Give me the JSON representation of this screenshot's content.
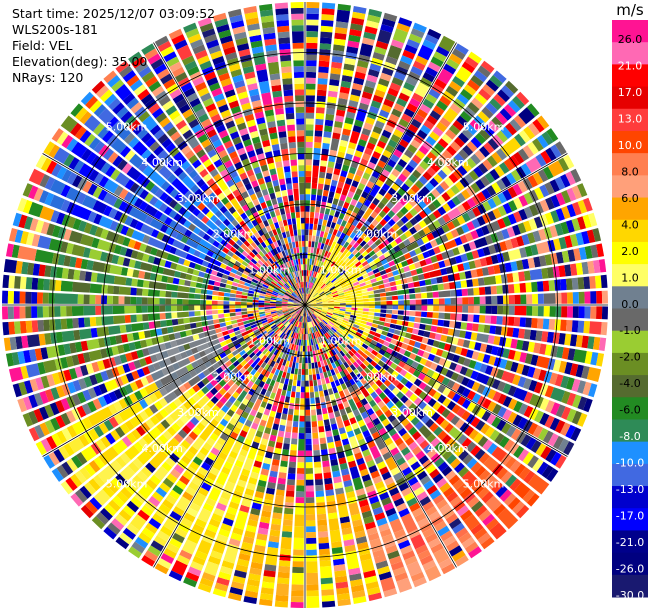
{
  "info": {
    "start_time": "Start time: 2025/12/07 03:09:52",
    "instrument": "WLS200s-181",
    "field": "Field: VEL",
    "elevation": "Elevation(deg): 35.00",
    "nrays": "NRays: 120"
  },
  "chart_data": {
    "type": "heatmap",
    "projection": "polar-ppi",
    "field": "VEL",
    "unit": "m/s",
    "nrays": 120,
    "elevation_deg": 35.0,
    "max_range_km": 6.0,
    "range_rings_km": [
      1.0,
      2.0,
      3.0,
      4.0,
      5.0
    ],
    "ring_labels": [
      "1.00km",
      "2.00km",
      "3.00km",
      "4.00km",
      "5.00km"
    ],
    "colorbar": {
      "ticks": [
        "26.0",
        "21.0",
        "17.0",
        "13.0",
        "10.0",
        "8.0",
        "6.0",
        "4.0",
        "2.0",
        "1.0",
        "0.0",
        "-1.0",
        "-2.0",
        "-4.0",
        "-6.0",
        "-8.0",
        "-10.0",
        "-13.0",
        "-17.0",
        "-21.0",
        "-26.0",
        "-30.0"
      ],
      "colors": [
        "#ff1493",
        "#ff69b4",
        "#ff0000",
        "#e60000",
        "#ff3c3c",
        "#ff4500",
        "#ff7f50",
        "#ffa07a",
        "#ffa500",
        "#ffd700",
        "#ffff00",
        "#ffff66",
        "#708090",
        "#696969",
        "#9acd32",
        "#6b8e23",
        "#556b2f",
        "#228b22",
        "#2e8b57",
        "#1e90ff",
        "#4169e1",
        "#0000cd",
        "#0000ff",
        "#00008b",
        "#000080",
        "#191970"
      ]
    },
    "coherent_regions": [
      {
        "name": "westnorthwest-blue",
        "az_from": 290,
        "az_to": 320,
        "r_from_km": 2.0,
        "r_to_km": 5.6,
        "tone": "blue"
      },
      {
        "name": "west-green",
        "az_from": 255,
        "az_to": 292,
        "r_from_km": 2.0,
        "r_to_km": 5.2,
        "tone": "green"
      },
      {
        "name": "westsouthwest-grey",
        "az_from": 235,
        "az_to": 258,
        "r_from_km": 1.8,
        "r_to_km": 3.4,
        "tone": "gray"
      },
      {
        "name": "southwest-yellow",
        "az_from": 195,
        "az_to": 242,
        "r_from_km": 2.6,
        "r_to_km": 5.6,
        "tone": "yellow"
      },
      {
        "name": "south-yellow-orange",
        "az_from": 165,
        "az_to": 200,
        "r_from_km": 3.8,
        "r_to_km": 6.0,
        "tone": "yellow_orange"
      },
      {
        "name": "southsoutheast-salmon",
        "az_from": 145,
        "az_to": 170,
        "r_from_km": 4.6,
        "r_to_km": 6.0,
        "tone": "salmon"
      },
      {
        "name": "southeast-orange",
        "az_from": 125,
        "az_to": 150,
        "r_from_km": 4.6,
        "r_to_km": 6.0,
        "tone": "orange"
      },
      {
        "name": "northeast-core-yellow",
        "az_from": 25,
        "az_to": 130,
        "r_from_km": 0.0,
        "r_to_km": 1.4,
        "tone": "yellow"
      }
    ]
  }
}
